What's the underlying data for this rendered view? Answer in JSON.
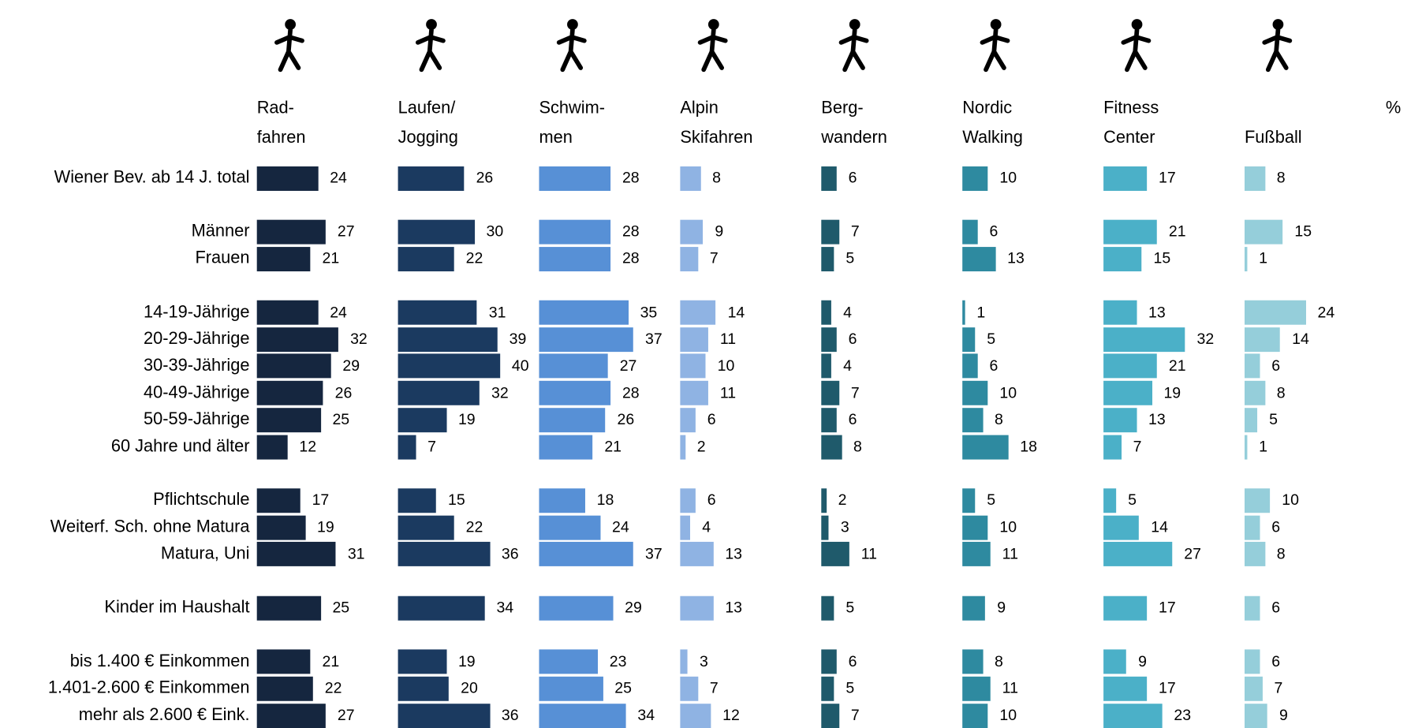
{
  "chart_data": {
    "type": "bar",
    "orientation": "horizontal",
    "unit_label": "%",
    "categories": [
      "Wiener Bev. ab 14 J. total",
      "Männer",
      "Frauen",
      "14-19-Jährige",
      "20-29-Jährige",
      "30-39-Jährige",
      "40-49-Jährige",
      "50-59-Jährige",
      "60 Jahre und älter",
      "Pflichtschule",
      "Weiterf. Sch. ohne Matura",
      "Matura, Uni",
      "Kinder im Haushalt",
      "bis 1.400 € Einkommen",
      "1.401-2.600 € Einkommen",
      "mehr als 2.600 € Eink."
    ],
    "series": [
      {
        "name": "Rad-\nfahren",
        "color": "#15263f",
        "values": [
          24,
          27,
          21,
          24,
          32,
          29,
          26,
          25,
          12,
          17,
          19,
          31,
          25,
          21,
          22,
          27
        ]
      },
      {
        "name": "Laufen/\nJogging",
        "color": "#1b3a60",
        "values": [
          26,
          30,
          22,
          31,
          39,
          40,
          32,
          19,
          7,
          15,
          22,
          36,
          34,
          19,
          20,
          36
        ]
      },
      {
        "name": "Schwim-\nmen",
        "color": "#5790d6",
        "values": [
          28,
          28,
          28,
          35,
          37,
          27,
          28,
          26,
          21,
          18,
          24,
          37,
          29,
          23,
          25,
          34
        ]
      },
      {
        "name": "Alpin\nSkifahren",
        "color": "#8fb3e3",
        "values": [
          8,
          9,
          7,
          14,
          11,
          10,
          11,
          6,
          2,
          6,
          4,
          13,
          13,
          3,
          7,
          12
        ]
      },
      {
        "name": "Berg-\nwandern",
        "color": "#1f5a6b",
        "values": [
          6,
          7,
          5,
          4,
          6,
          4,
          7,
          6,
          8,
          2,
          3,
          11,
          5,
          6,
          5,
          7
        ]
      },
      {
        "name": "Nordic\nWalking",
        "color": "#2e8aa0",
        "values": [
          10,
          6,
          13,
          1,
          5,
          6,
          10,
          8,
          18,
          5,
          10,
          11,
          9,
          8,
          11,
          10
        ]
      },
      {
        "name": "Fitness\nCenter",
        "color": "#4bb0c8",
        "values": [
          17,
          21,
          15,
          13,
          32,
          21,
          19,
          13,
          7,
          5,
          14,
          27,
          17,
          9,
          17,
          23
        ]
      },
      {
        "name": "\nFußball",
        "color": "#95ceda",
        "values": [
          8,
          15,
          1,
          24,
          14,
          6,
          8,
          5,
          1,
          10,
          6,
          8,
          6,
          6,
          7,
          9
        ]
      }
    ]
  }
}
